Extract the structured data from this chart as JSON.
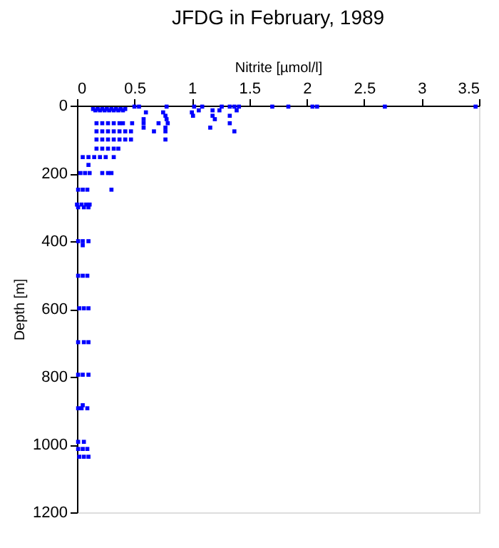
{
  "chart_data": {
    "type": "scatter",
    "title": "JFDG in February, 1989",
    "xlabel": "Nitrite [µmol/l]",
    "ylabel": "Depth [m]",
    "xlim": [
      0,
      3.5
    ],
    "xticks": [
      0,
      0.5,
      1,
      1.5,
      2,
      2.5,
      3,
      3.5
    ],
    "ylim": [
      1200,
      0
    ],
    "yticks": [
      0,
      200,
      400,
      600,
      800,
      1000,
      1200
    ],
    "grid": false,
    "marker": "square",
    "series": [
      {
        "color": "#0000ff",
        "x": [
          0.5,
          0.54,
          0.78,
          1.02,
          1.09,
          1.26,
          1.33,
          1.37,
          1.41,
          1.7,
          1.84,
          2.05,
          2.09,
          2.68,
          3.47,
          0.14,
          0.18,
          0.22,
          0.26,
          0.3,
          0.34,
          0.38,
          0.42,
          0.16,
          0.2,
          0.24,
          0.28,
          0.32,
          0.36,
          0.4,
          1.06,
          1.18,
          1.24,
          1.39,
          0.6,
          0.75,
          1.0,
          1.01,
          1.18,
          1.33,
          0.77,
          0.58,
          1.2,
          0.78,
          0.17,
          0.22,
          0.27,
          0.32,
          0.37,
          0.4,
          0.48,
          0.58,
          0.71,
          0.79,
          1.33,
          0.58,
          1.16,
          0.77,
          0.17,
          0.22,
          0.27,
          0.32,
          0.37,
          0.42,
          0.47,
          0.67,
          0.77,
          1.37,
          0.17,
          0.22,
          0.27,
          0.32,
          0.37,
          0.42,
          0.47,
          0.77,
          0.17,
          0.22,
          0.27,
          0.32,
          0.36,
          0.05,
          0.1,
          0.15,
          0.2,
          0.25,
          0.32,
          0.1,
          0.03,
          0.07,
          0.11,
          0.22,
          0.27,
          0.3,
          0.01,
          0.05,
          0.09,
          0.3,
          0.0,
          0.04,
          0.08,
          0.11,
          0.01,
          0.06,
          0.1,
          0.01,
          0.05,
          0.1,
          0.05,
          0.01,
          0.05,
          0.09,
          0.02,
          0.06,
          0.1,
          0.01,
          0.06,
          0.1,
          0.01,
          0.05,
          0.1,
          0.05,
          0.01,
          0.04,
          0.09,
          0.01,
          0.06,
          0.01,
          0.05,
          0.09,
          0.02,
          0.06,
          0.1
        ],
        "values": [
          3,
          3,
          3,
          3,
          3,
          3,
          3,
          3,
          3,
          3,
          3,
          3,
          3,
          3,
          3,
          10,
          10,
          10,
          10,
          10,
          10,
          10,
          10,
          14,
          14,
          14,
          14,
          14,
          14,
          14,
          14,
          14,
          14,
          14,
          20,
          20,
          20,
          30,
          30,
          30,
          30,
          40,
          40,
          40,
          52,
          52,
          52,
          52,
          52,
          52,
          52,
          52,
          52,
          52,
          52,
          65,
          65,
          65,
          76,
          76,
          76,
          76,
          76,
          76,
          76,
          76,
          76,
          76,
          100,
          100,
          100,
          100,
          100,
          100,
          100,
          100,
          127,
          127,
          127,
          127,
          127,
          152,
          152,
          152,
          152,
          152,
          152,
          175,
          199,
          199,
          199,
          199,
          199,
          199,
          248,
          248,
          248,
          248,
          292,
          292,
          292,
          292,
          300,
          300,
          300,
          400,
          400,
          400,
          412,
          502,
          502,
          502,
          598,
          598,
          598,
          698,
          698,
          698,
          794,
          794,
          794,
          884,
          893,
          893,
          893,
          992,
          992,
          1013,
          1013,
          1013,
          1036,
          1036,
          1036
        ]
      }
    ]
  }
}
